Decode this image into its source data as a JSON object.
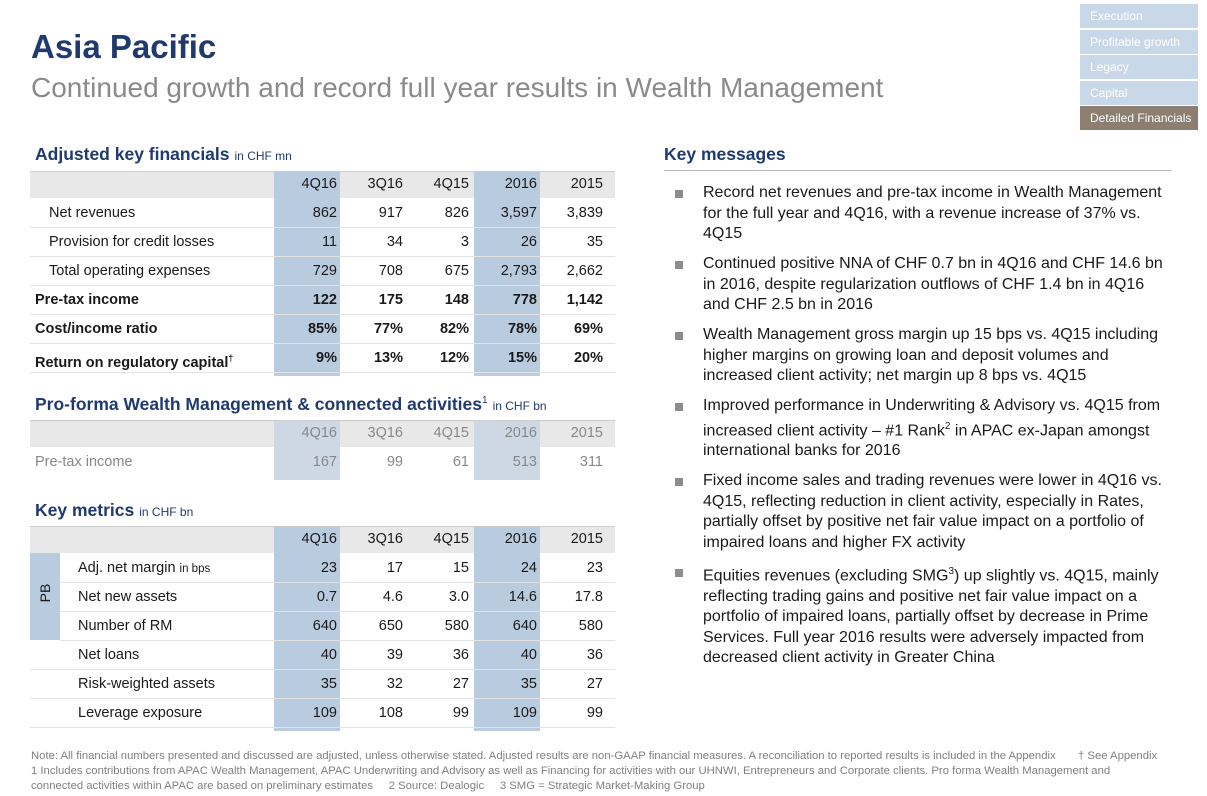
{
  "header": {
    "title": "Asia Pacific",
    "subtitle": "Continued growth and record full year results in Wealth Management"
  },
  "nav": [
    "Execution",
    "Profitable growth",
    "Legacy",
    "Capital",
    "Detailed Financials"
  ],
  "table1": {
    "title": "Adjusted key financials",
    "unit": "in CHF mn",
    "columns": [
      "4Q16",
      "3Q16",
      "4Q15",
      "2016",
      "2015"
    ],
    "rows": [
      {
        "label": "Net revenues",
        "values": [
          "862",
          "917",
          "826",
          "3,597",
          "3,839"
        ]
      },
      {
        "label": "Provision for credit losses",
        "values": [
          "11",
          "34",
          "3",
          "26",
          "35"
        ]
      },
      {
        "label": "Total operating expenses",
        "values": [
          "729",
          "708",
          "675",
          "2,793",
          "2,662"
        ]
      },
      {
        "label": "Pre-tax income",
        "values": [
          "122",
          "175",
          "148",
          "778",
          "1,142"
        ]
      },
      {
        "label": "Cost/income ratio",
        "values": [
          "85%",
          "77%",
          "82%",
          "78%",
          "69%"
        ]
      },
      {
        "label": "Return on regulatory capital",
        "sup": "†",
        "values": [
          "9%",
          "13%",
          "12%",
          "15%",
          "20%"
        ]
      }
    ]
  },
  "table2": {
    "title": "Pro-forma Wealth Management & connected activities",
    "sup": "1",
    "unit": "in CHF bn",
    "columns": [
      "4Q16",
      "3Q16",
      "4Q15",
      "2016",
      "2015"
    ],
    "rows": [
      {
        "label": "Pre-tax income",
        "values": [
          "167",
          "99",
          "61",
          "513",
          "311"
        ]
      }
    ]
  },
  "table3": {
    "title": "Key metrics",
    "unit": "in CHF bn",
    "group": "PB",
    "columns": [
      "4Q16",
      "3Q16",
      "4Q15",
      "2016",
      "2015"
    ],
    "rows": [
      {
        "label": "Adj. net margin",
        "unit": "in bps",
        "values": [
          "23",
          "17",
          "15",
          "24",
          "23"
        ]
      },
      {
        "label": "Net new assets",
        "values": [
          "0.7",
          "4.6",
          "3.0",
          "14.6",
          "17.8"
        ]
      },
      {
        "label": "Number of RM",
        "values": [
          "640",
          "650",
          "580",
          "640",
          "580"
        ]
      },
      {
        "label": "Net loans",
        "values": [
          "40",
          "39",
          "36",
          "40",
          "36"
        ]
      },
      {
        "label": "Risk-weighted assets",
        "values": [
          "35",
          "32",
          "27",
          "35",
          "27"
        ]
      },
      {
        "label": "Leverage exposure",
        "values": [
          "109",
          "108",
          "99",
          "109",
          "99"
        ]
      }
    ]
  },
  "key_messages": {
    "title": "Key messages",
    "items": [
      [
        "Record net revenues and pre-tax income in Wealth Management for the full year and 4Q16, with a revenue increase of 37% vs. 4Q15"
      ],
      [
        "Continued positive NNA of CHF 0.7 bn in 4Q16 and CHF 14.6 bn in 2016, despite regularization outflows of CHF 1.4 bn in 4Q16 and CHF 2.5 bn in 2016"
      ],
      [
        "Wealth Management gross margin up 15 bps vs. 4Q15 including higher margins on growing loan and deposit volumes and increased client activity; net margin up 8 bps vs. 4Q15"
      ],
      [
        "Improved performance in Underwriting & Advisory vs. 4Q15 from increased client activity – #1 Rank",
        "2",
        " in APAC ex-Japan amongst international banks for 2016"
      ],
      [
        "Fixed income sales and trading revenues were lower in 4Q16 vs. 4Q15, reflecting reduction in client activity, especially in Rates, partially offset by positive net fair value impact on a portfolio of impaired loans and higher FX activity"
      ],
      [
        "Equities revenues (excluding SMG",
        "3",
        ") up slightly vs. 4Q15, mainly reflecting trading gains and positive net fair value impact on a portfolio of impaired loans, partially offset by decrease in Prime Services. Full year 2016 results were adversely impacted from decreased client activity in Greater China"
      ]
    ]
  },
  "footnotes": {
    "note": "Note: All financial numbers presented and discussed are adjusted, unless otherwise stated. Adjusted results are non-GAAP financial measures. A reconciliation to reported results is included in the Appendix",
    "appendix": "† See Appendix",
    "line2": "1 Includes contributions from APAC Wealth Management, APAC Underwriting and Advisory as well as Financing for activities with our UHNWI, Entrepreneurs and Corporate clients. Pro forma Wealth Management and",
    "line3": "connected activities within APAC are based on preliminary estimates     2 Source: Dealogic     3 SMG = Strategic Market-Making Group"
  }
}
